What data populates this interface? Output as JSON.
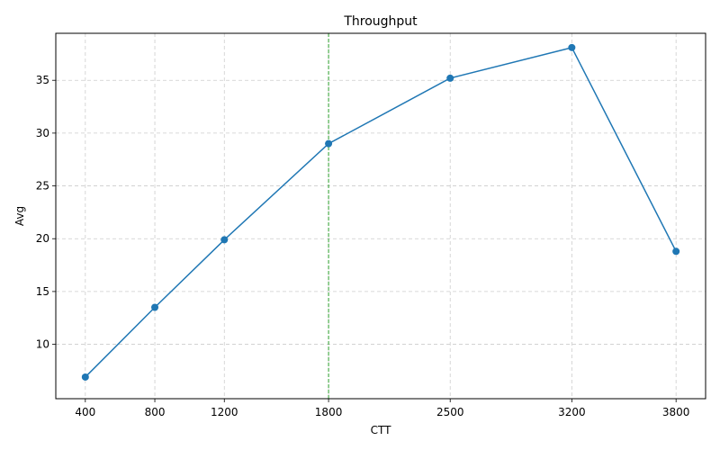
{
  "chart_data": {
    "type": "line",
    "title": "Throughput",
    "xlabel": "CTT",
    "ylabel": "Avg",
    "x": [
      400,
      800,
      1200,
      1800,
      2500,
      3200,
      3800
    ],
    "series": [
      {
        "values": [
          6.9,
          13.5,
          19.9,
          29.0,
          35.2,
          38.1,
          18.8
        ]
      }
    ],
    "xticks": [
      400,
      800,
      1200,
      1800,
      2500,
      3200,
      3800
    ],
    "yticks": [
      10,
      15,
      20,
      25,
      30,
      35
    ],
    "xlim": [
      230,
      3970
    ],
    "ylim": [
      4.85,
      39.45
    ],
    "grid": true,
    "vline": {
      "x": 1800,
      "color": "#2ca02c",
      "style": "dashed"
    },
    "colors": {
      "line": "#1f77b4",
      "marker": "#1f77b4",
      "grid": "#cccccc"
    }
  }
}
